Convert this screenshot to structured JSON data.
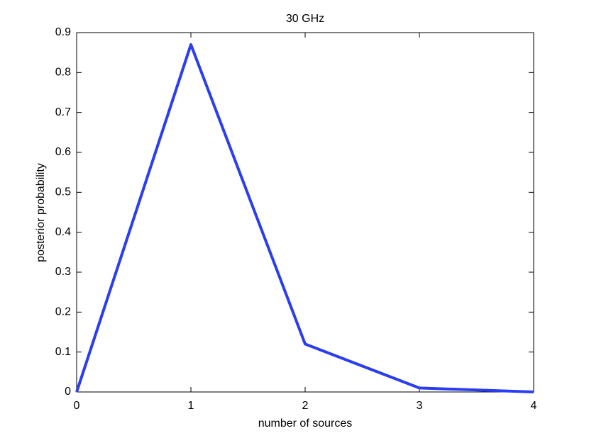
{
  "chart_data": {
    "type": "line",
    "title": "30 GHz",
    "x_label": "number of sources",
    "y_label": "posterior probability",
    "x": [
      0,
      1,
      2,
      3,
      4
    ],
    "values": [
      0,
      0.87,
      0.12,
      0.01,
      0.0
    ],
    "color": "#2b3df2",
    "xlim": [
      0,
      4
    ],
    "xticks": [
      0,
      1,
      2,
      3,
      4
    ],
    "ylim": [
      0,
      0.9
    ],
    "yticks": [
      0,
      0.1,
      0.2,
      0.3,
      0.4,
      0.5,
      0.6,
      0.7,
      0.8,
      0.9
    ],
    "grid": false
  }
}
